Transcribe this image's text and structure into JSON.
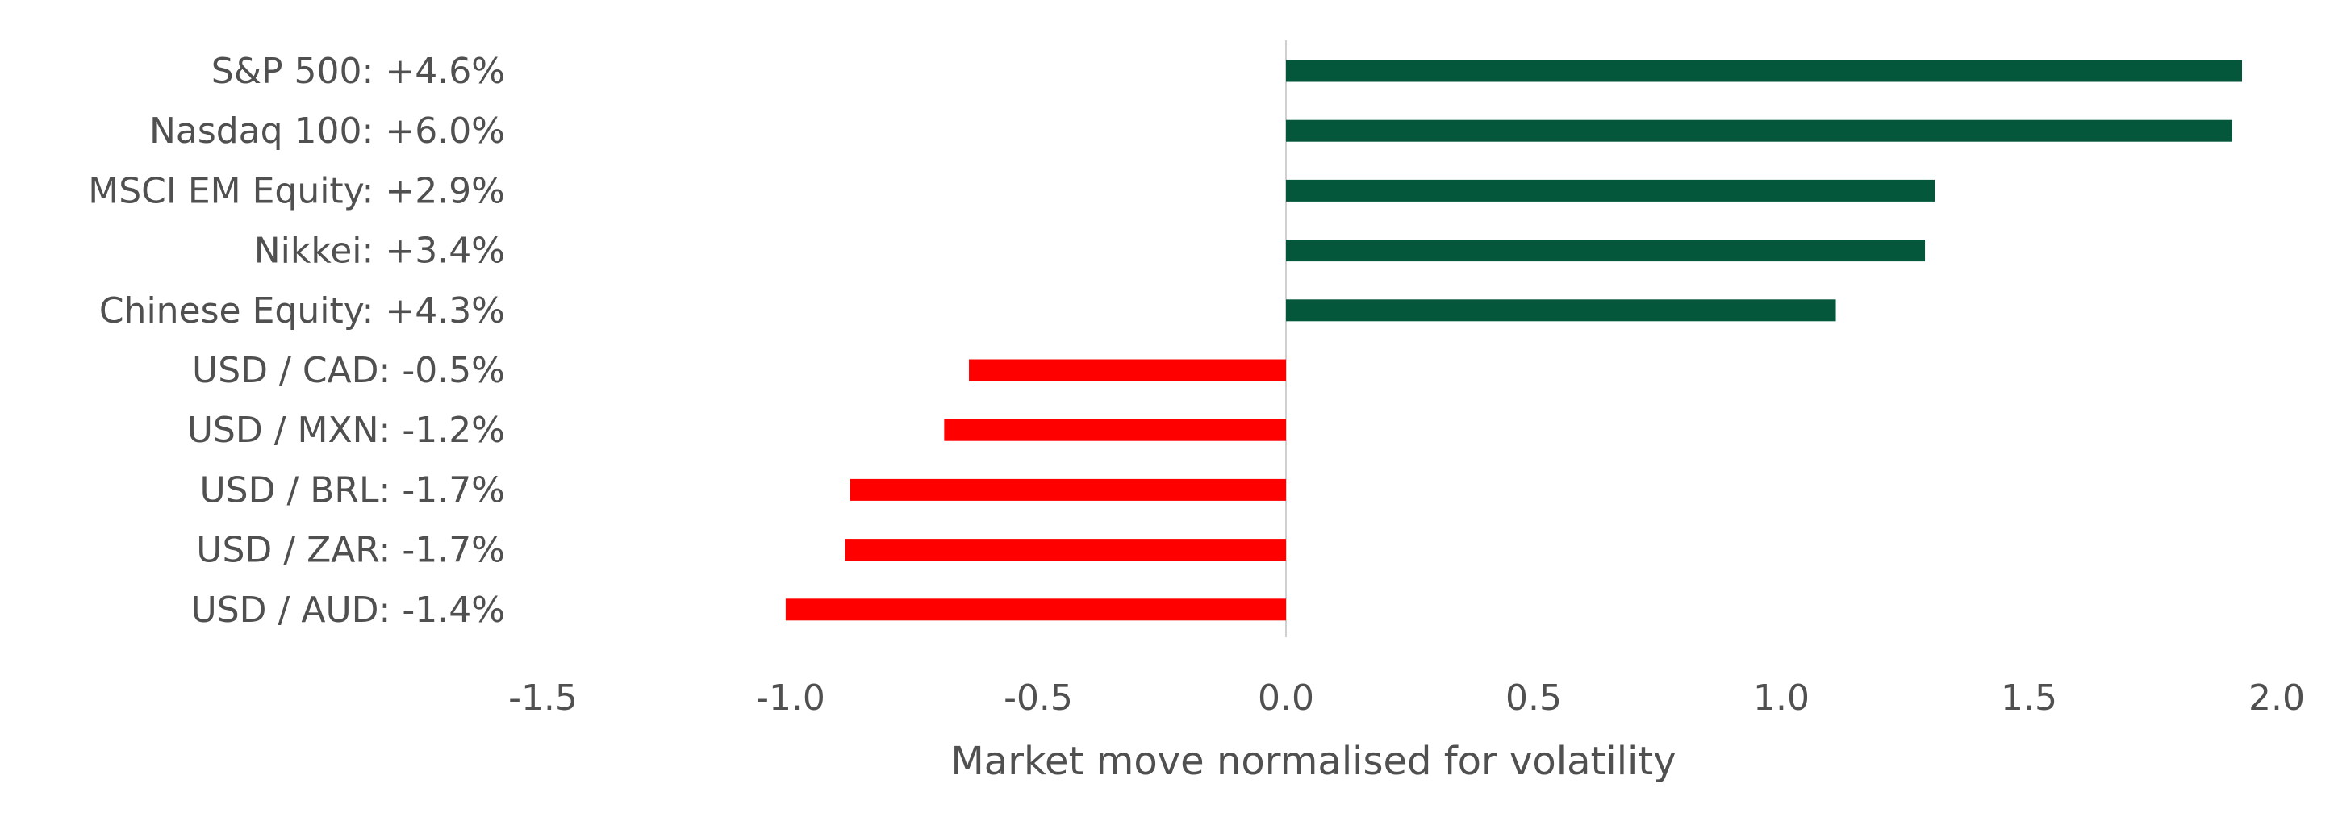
{
  "chart_data": {
    "type": "bar",
    "orientation": "horizontal",
    "categories": [
      "S&P 500: +4.6%",
      "Nasdaq 100: +6.0%",
      "MSCI EM Equity: +2.9%",
      "Nikkei: +3.4%",
      "Chinese Equity: +4.3%",
      "USD / CAD: -0.5%",
      "USD / MXN: -1.2%",
      "USD / BRL: -1.7%",
      "USD / ZAR: -1.7%",
      "USD / AUD: -1.4%"
    ],
    "values": [
      1.93,
      1.91,
      1.31,
      1.29,
      1.11,
      -0.64,
      -0.69,
      -0.88,
      -0.89,
      -1.01
    ],
    "xlabel": "Market move normalised for volatility",
    "xlim": [
      -1.5,
      2.0
    ],
    "xticks": [
      "-1.5",
      "-1.0",
      "-0.5",
      "0.0",
      "0.5",
      "1.0",
      "1.5",
      "2.0"
    ],
    "xtick_values": [
      -1.5,
      -1.0,
      -0.5,
      0.0,
      0.5,
      1.0,
      1.5,
      2.0
    ],
    "grid": false,
    "legend": "none",
    "colors": {
      "positive": "#04573a",
      "negative": "#ff0000",
      "zero_line": "#d0d0d0",
      "text": "#505050"
    }
  }
}
